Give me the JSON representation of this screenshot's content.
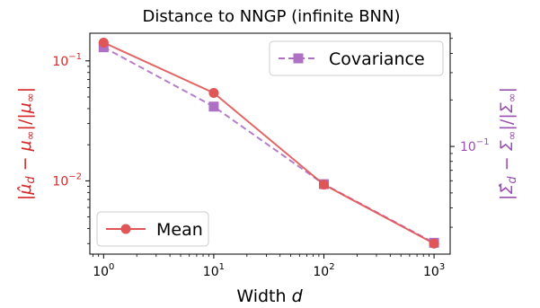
{
  "chart_data": {
    "type": "line",
    "title": "Distance to NNGP (infinite BNN)",
    "xlabel": "Width d",
    "ylabel_left": "|μ̂_d − μ_∞|/|μ_∞|",
    "ylabel_right": "|Σ̂_d − Σ_∞|/|Σ_∞|",
    "xscale": "log",
    "yscale_left": "log",
    "yscale_right": "log",
    "x": [
      1,
      10,
      100,
      1000
    ],
    "xlim": [
      0.75,
      1400
    ],
    "x_ticks": [
      {
        "value": 1,
        "base": "10",
        "exp": "0"
      },
      {
        "value": 10,
        "base": "10",
        "exp": "1"
      },
      {
        "value": 100,
        "base": "10",
        "exp": "2"
      },
      {
        "value": 1000,
        "base": "10",
        "exp": "3"
      }
    ],
    "ylim_left": [
      0.00245,
      0.17
    ],
    "y_left_ticks": [
      {
        "value": 0.1,
        "base": "10",
        "exp": "−1"
      },
      {
        "value": 0.01,
        "base": "10",
        "exp": "−2"
      }
    ],
    "ylim_right": [
      0.0201,
      0.54
    ],
    "y_right_ticks": [
      {
        "value": 0.1,
        "base": "10",
        "exp": "−1"
      }
    ],
    "series": [
      {
        "name": "Mean",
        "axis": "left",
        "color": "#e05555",
        "marker": "circle",
        "linestyle": "solid",
        "values": [
          0.142,
          0.054,
          0.0093,
          0.003
        ]
      },
      {
        "name": "Covariance",
        "axis": "right",
        "color": "#ae70c4",
        "marker": "square",
        "linestyle": "dashed",
        "values": [
          0.438,
          0.181,
          0.057,
          0.0238
        ]
      }
    ],
    "legends": [
      {
        "series": 1,
        "placement": "top-right"
      },
      {
        "series": 0,
        "placement": "bottom-left"
      }
    ],
    "left_axis_color": "#d62728",
    "right_axis_color": "#9b4fb0",
    "grid": false
  }
}
